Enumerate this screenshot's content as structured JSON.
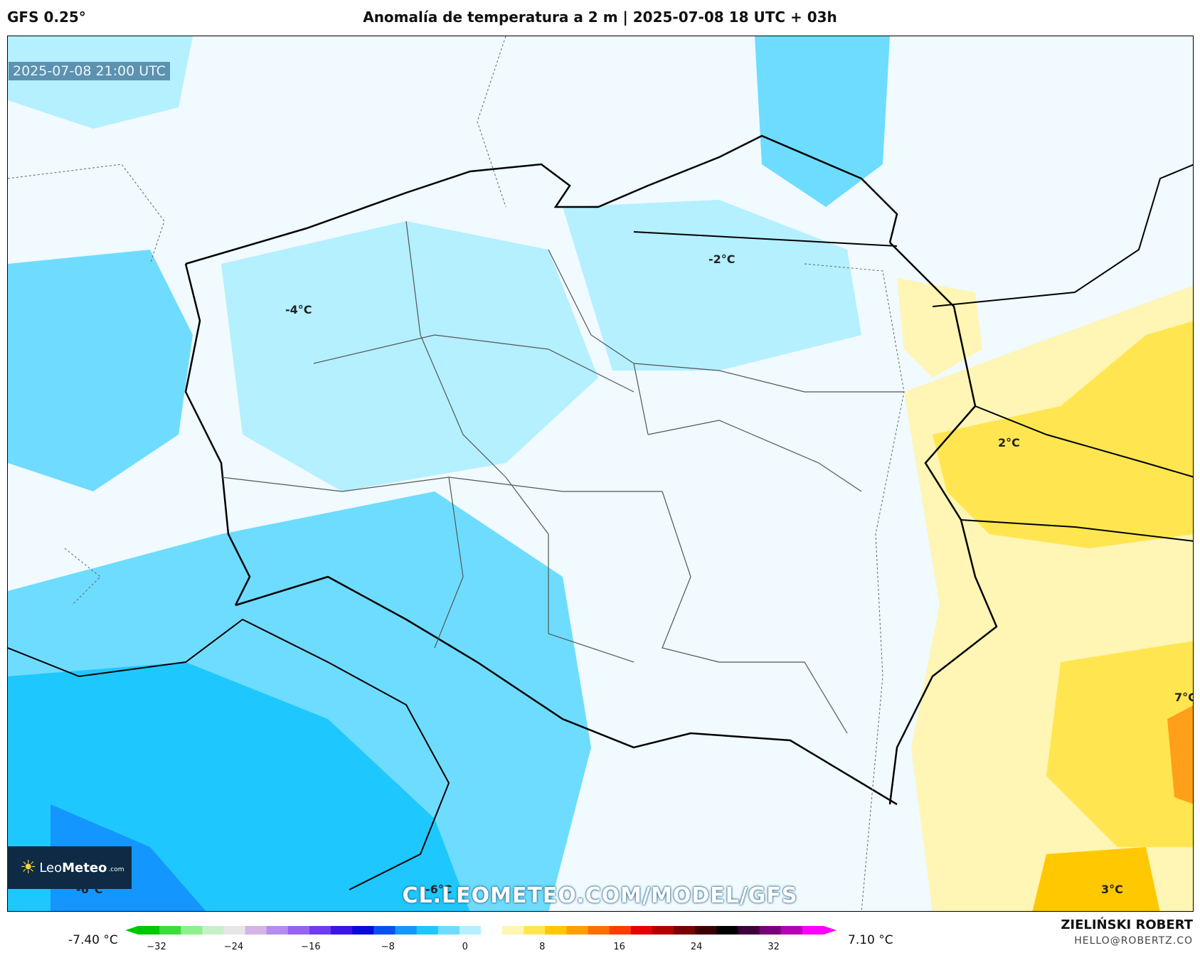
{
  "header": {
    "model": "GFS 0.25°",
    "title": "Anomalía de temperatura a 2 m | 2025-07-08 18 UTC + 03h"
  },
  "map": {
    "valid_time": "2025-07-08 21:00 UTC",
    "labels": {
      "minus2": "-2°C",
      "minus4": "-4°C",
      "plus2": "2°C",
      "plus7": "7°C",
      "minus6a": "-6°C",
      "minus6b": "-6°C",
      "plus3": "3°C"
    },
    "watermark": "CL.LEOMETEO.COM/MODEL/GFS",
    "logo": {
      "text_light": "Leo",
      "text_bold": "Meteo",
      "suffix": ".com"
    }
  },
  "colorbar": {
    "min_label": "-7.40 °C",
    "max_label": "7.10 °C",
    "ticks": [
      "−32",
      "−24",
      "−16",
      "−8",
      "0",
      "8",
      "16",
      "24",
      "32"
    ],
    "colors": [
      "#00c800",
      "#3cdc3c",
      "#8cf08c",
      "#c8f0c8",
      "#e6e6e6",
      "#d2b4e6",
      "#b48cf0",
      "#9664f0",
      "#6e3cf0",
      "#3c14e6",
      "#0a0adc",
      "#0a50f0",
      "#1496ff",
      "#1ec8ff",
      "#6edcff",
      "#b4f0ff",
      "#ffffff",
      "#fff5b4",
      "#ffe650",
      "#ffc800",
      "#ffa000",
      "#ff6e00",
      "#ff3c00",
      "#e60000",
      "#b40000",
      "#780000",
      "#3c0000",
      "#000000",
      "#3c003c",
      "#780078",
      "#b400b4",
      "#ff00ff"
    ]
  },
  "credits": {
    "author": "ZIELIŃSKI ROBERT",
    "email": "HELLO@ROBERTZ.CO"
  }
}
